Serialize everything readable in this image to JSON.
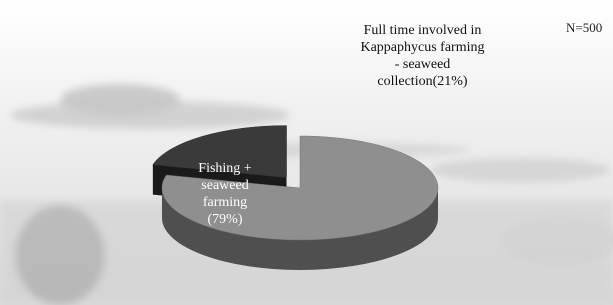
{
  "chart_data": {
    "type": "pie3d",
    "annotation": "N=500",
    "categories": [
      "Fishing + seaweed farming",
      "Full time involved in Kappaphycus farming - seaweed collection"
    ],
    "values": [
      79,
      21
    ],
    "value_labels": [
      "(79%)",
      "(21%)"
    ],
    "colors": [
      "#8f8f8f",
      "#3a3a3a"
    ],
    "start_angle": -90,
    "exploded": [
      false,
      true
    ]
  }
}
